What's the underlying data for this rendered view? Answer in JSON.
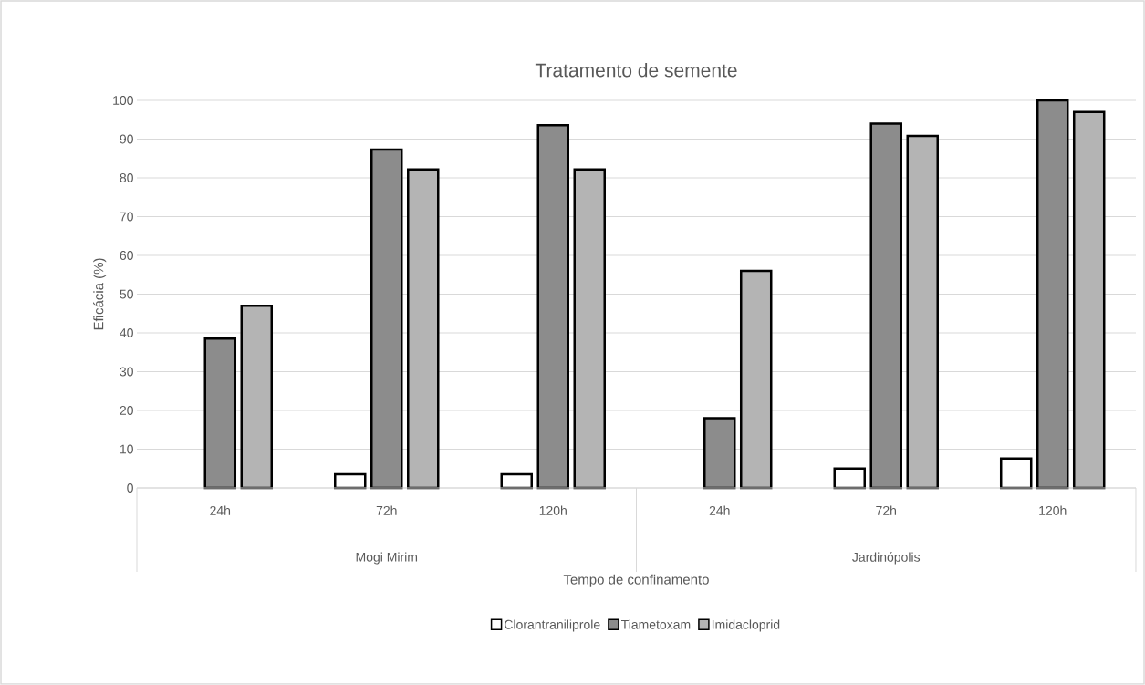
{
  "chart_data": {
    "type": "bar",
    "title": "Tratamento de semente",
    "xlabel": "Tempo de confinamento",
    "ylabel": "Eficácia (%)",
    "categories": [
      "24h",
      "72h",
      "120h",
      "24h",
      "72h",
      "120h"
    ],
    "annotations": [
      "Mogi Mirim",
      "Jardinópolis"
    ],
    "series": [
      {
        "name": "Clorantraniliprole",
        "color": "#ffffff",
        "values": [
          null,
          3.5,
          3.5,
          null,
          5,
          7.6
        ]
      },
      {
        "name": "Tiametoxam",
        "color": "#8c8c8c",
        "values": [
          38.5,
          87.3,
          93.6,
          18,
          94,
          100
        ]
      },
      {
        "name": "Imidacloprid",
        "color": "#b4b4b4",
        "values": [
          47,
          82.2,
          82.2,
          56,
          90.8,
          97
        ]
      }
    ],
    "ylim": [
      0,
      100
    ],
    "yticks": [
      0,
      10,
      20,
      30,
      40,
      50,
      60,
      70,
      80,
      90,
      100
    ],
    "grid": "y",
    "legend": "bottom"
  }
}
